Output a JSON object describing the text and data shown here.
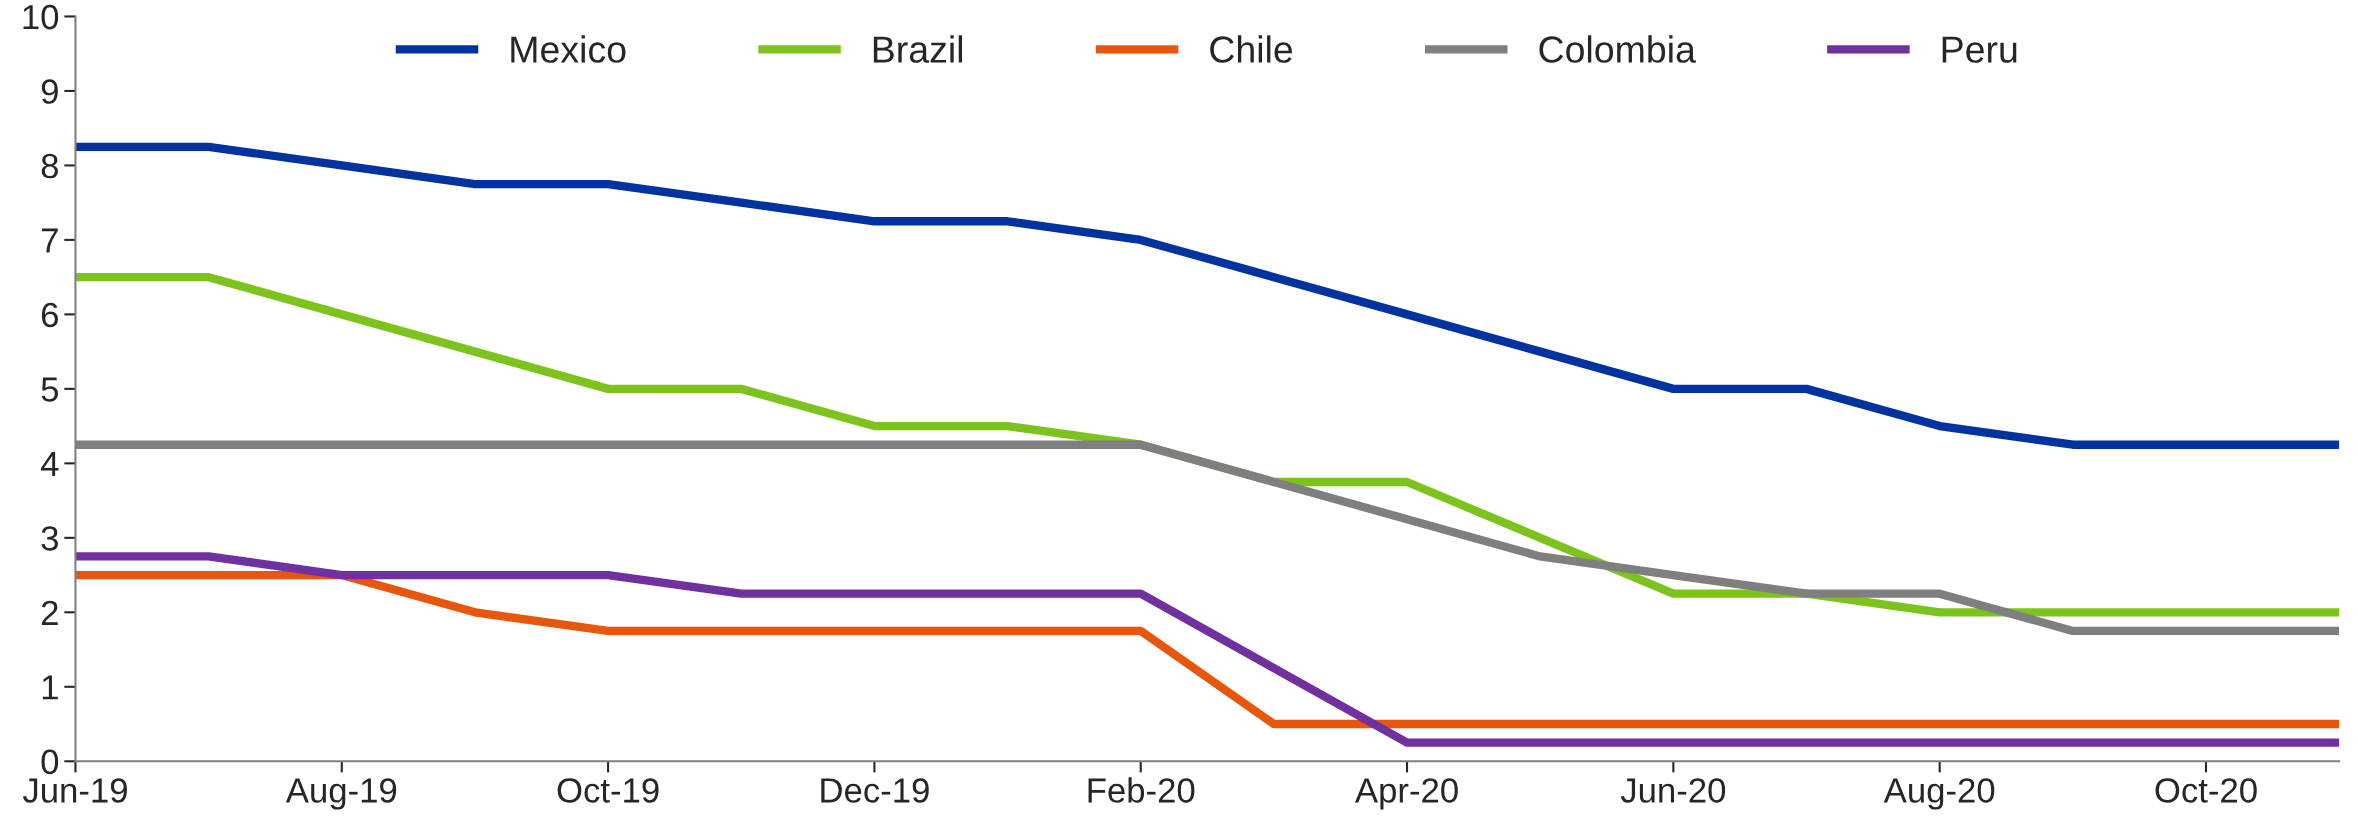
{
  "chart_data": {
    "type": "line",
    "categories": [
      "Jun-19",
      null,
      "Aug-19",
      null,
      "Oct-19",
      null,
      "Dec-19",
      null,
      "Feb-20",
      null,
      "Apr-20",
      null,
      "Jun-20",
      null,
      "Aug-20",
      null,
      "Oct-20",
      null
    ],
    "series": [
      {
        "name": "Mexico",
        "color": "#0033a0",
        "values": [
          8.25,
          8.25,
          8.0,
          7.75,
          7.75,
          7.5,
          7.25,
          7.25,
          7.0,
          6.5,
          6.0,
          5.5,
          5.0,
          5.0,
          4.5,
          4.25,
          4.25,
          4.25
        ]
      },
      {
        "name": "Brazil",
        "color": "#7dc31e",
        "values": [
          6.5,
          6.5,
          6.0,
          5.5,
          5.0,
          5.0,
          4.5,
          4.5,
          4.25,
          3.75,
          3.75,
          3.0,
          2.25,
          2.25,
          2.0,
          2.0,
          2.0,
          2.0
        ]
      },
      {
        "name": "Chile",
        "color": "#e8560c",
        "values": [
          2.5,
          2.5,
          2.5,
          2.0,
          1.75,
          1.75,
          1.75,
          1.75,
          1.75,
          0.5,
          0.5,
          0.5,
          0.5,
          0.5,
          0.5,
          0.5,
          0.5,
          0.5
        ]
      },
      {
        "name": "Colombia",
        "color": "#7f7f7f",
        "values": [
          4.25,
          4.25,
          4.25,
          4.25,
          4.25,
          4.25,
          4.25,
          4.25,
          4.25,
          3.75,
          3.25,
          2.75,
          2.5,
          2.25,
          2.25,
          1.75,
          1.75,
          1.75
        ]
      },
      {
        "name": "Peru",
        "color": "#7030a0",
        "values": [
          2.75,
          2.75,
          2.5,
          2.5,
          2.5,
          2.25,
          2.25,
          2.25,
          2.25,
          1.25,
          0.25,
          0.25,
          0.25,
          0.25,
          0.25,
          0.25,
          0.25,
          0.25
        ]
      }
    ],
    "ylim": [
      0,
      10
    ],
    "yticks": [
      0,
      1,
      2,
      3,
      4,
      5,
      6,
      7,
      8,
      9,
      10
    ],
    "legend": "top",
    "grid": false,
    "marker": "none",
    "line_style": "solid"
  }
}
